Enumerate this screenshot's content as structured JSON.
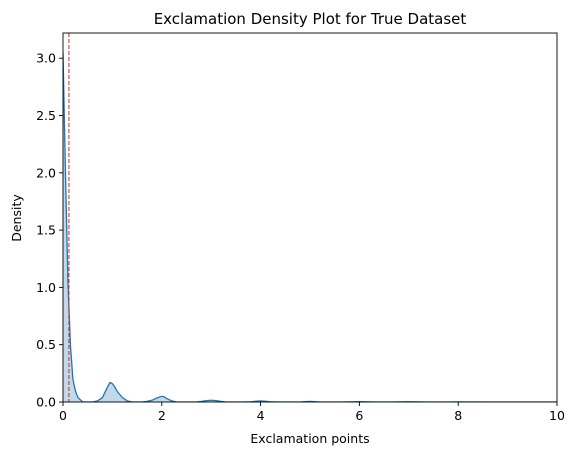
{
  "chart_data": {
    "type": "area",
    "title": "Exclamation Density Plot for True Dataset",
    "xlabel": "Exclamation points",
    "ylabel": "Density",
    "xlim": [
      0,
      10
    ],
    "ylim": [
      0,
      3.22
    ],
    "xticks": [
      0,
      2,
      4,
      6,
      8,
      10
    ],
    "yticks": [
      0.0,
      0.5,
      1.0,
      1.5,
      2.0,
      2.5,
      3.0
    ],
    "ytick_labels": [
      "0.0",
      "0.5",
      "1.0",
      "1.5",
      "2.0",
      "2.5",
      "3.0"
    ],
    "grid": false,
    "series": [
      {
        "line_color": "#1f77b4",
        "fill_color": "#a9c8df",
        "x": [
          0.0,
          0.05,
          0.1,
          0.15,
          0.2,
          0.25,
          0.3,
          0.4,
          0.5,
          0.6,
          0.7,
          0.8,
          0.9,
          0.95,
          1.0,
          1.05,
          1.1,
          1.2,
          1.3,
          1.4,
          1.5,
          1.6,
          1.7,
          1.8,
          1.9,
          2.0,
          2.05,
          2.1,
          2.2,
          2.3,
          2.4,
          2.5,
          2.6,
          2.7,
          2.8,
          2.9,
          3.0,
          3.1,
          3.2,
          3.3,
          3.4,
          3.6,
          3.8,
          3.9,
          4.0,
          4.1,
          4.2,
          4.4,
          4.6,
          4.8,
          4.9,
          5.0,
          5.1,
          5.2,
          5.4,
          5.6,
          5.8,
          6.0,
          6.2,
          6.4,
          6.6,
          6.8,
          7.0,
          7.2,
          7.4,
          7.6,
          7.8,
          8.0,
          8.5,
          9.0,
          9.5,
          10.0
        ],
        "y": [
          3.05,
          2.0,
          1.05,
          0.5,
          0.2,
          0.1,
          0.04,
          0.0,
          0.0,
          0.0,
          0.01,
          0.04,
          0.13,
          0.17,
          0.16,
          0.13,
          0.09,
          0.04,
          0.01,
          0.0,
          0.0,
          0.0,
          0.005,
          0.015,
          0.035,
          0.05,
          0.045,
          0.03,
          0.01,
          0.0,
          0.0,
          0.0,
          0.0,
          0.0,
          0.005,
          0.012,
          0.015,
          0.012,
          0.005,
          0.0,
          0.0,
          0.0,
          0.002,
          0.006,
          0.01,
          0.006,
          0.002,
          0.0,
          0.0,
          0.0,
          0.003,
          0.005,
          0.003,
          0.0,
          0.0,
          0.0,
          0.001,
          0.003,
          0.001,
          0.0,
          0.0,
          0.001,
          0.002,
          0.001,
          0.0,
          0.0,
          0.0,
          0.001,
          0.0,
          0.0,
          0.0,
          0.0
        ]
      }
    ],
    "reference_line": {
      "x": 0.12,
      "color": "#d62728",
      "style": "dashed"
    }
  }
}
